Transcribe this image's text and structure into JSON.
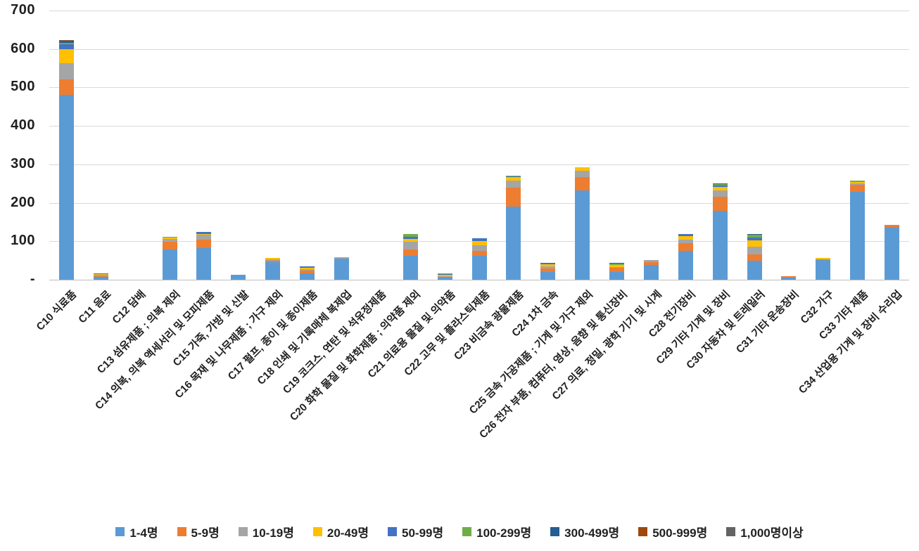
{
  "chart_data": {
    "type": "bar",
    "stacked": true,
    "title": "",
    "grid": "horizontal",
    "legend_position": "bottom",
    "ylim": [
      0,
      700
    ],
    "ytick_step": 100,
    "ytick_labels": [
      "-",
      "100",
      "200",
      "300",
      "400",
      "500",
      "600",
      "700"
    ],
    "categories": [
      "C10 식료품",
      "C11 음료",
      "C12 담배",
      "C13 섬유제품 ; 의복 제외",
      "C14 의복, 의복 액세서리 및 모피제품",
      "C15 가죽, 가방 및 신발",
      "C16 목재 및 나무제품 ; 가구 제외",
      "C17 펄프, 종이 및 종이제품",
      "C18 인쇄 및 기록매체 복제업",
      "C19 코크스, 연탄 및 석유정제품",
      "C20 화학 물질 및 화학제품 ; 의약품 제외",
      "C21 의료용 물질 및 의약품",
      "C22 고무 및 플라스틱제품",
      "C23 비금속 광물제품",
      "C24 1차 금속",
      "C25 금속 가공제품 ; 기계 및 가구 제외",
      "C26 전자 부품, 컴퓨터, 영상, 음향 및 통신장비",
      "C27 의료, 정밀, 광학 기기 및 시계",
      "C28 전기장비",
      "C29 기타 기계 및 장비",
      "C30 자동차 및 트레일러",
      "C31 기타 운송장비",
      "C32 가구",
      "C33 기타 제품",
      "C34 산업용 기계 및 장비 수리업"
    ],
    "series": [
      {
        "name": "1-4명",
        "color": "#5B9BD5",
        "values": [
          480,
          8,
          0,
          78,
          82,
          12,
          45,
          16,
          55,
          0,
          63,
          5,
          63,
          190,
          21,
          232,
          21,
          39,
          75,
          179,
          50,
          6,
          51,
          229,
          138
        ]
      },
      {
        "name": "5-9명",
        "color": "#ED7D31",
        "values": [
          41,
          2,
          0,
          20,
          23,
          0,
          5,
          8,
          0,
          0,
          15,
          2,
          12,
          49,
          9,
          35,
          10,
          7,
          20,
          36,
          16,
          3,
          2,
          17,
          4
        ]
      },
      {
        "name": "10-19명",
        "color": "#A5A5A5",
        "values": [
          42,
          2,
          0,
          8,
          12,
          0,
          3,
          3,
          3,
          0,
          20,
          2,
          15,
          19,
          4,
          17,
          2,
          6,
          9,
          17,
          20,
          0,
          0,
          5,
          0
        ]
      },
      {
        "name": "20-49명",
        "color": "#FFC000",
        "values": [
          37,
          3,
          0,
          3,
          2,
          0,
          4,
          4,
          0,
          0,
          8,
          3,
          11,
          9,
          6,
          8,
          6,
          0,
          9,
          10,
          17,
          0,
          3,
          4,
          0
        ]
      },
      {
        "name": "50-99명",
        "color": "#4472C4",
        "values": [
          13,
          2,
          0,
          1,
          5,
          0,
          0,
          3,
          0,
          0,
          6,
          2,
          6,
          1,
          3,
          0,
          0,
          0,
          5,
          3,
          7,
          0,
          0,
          0,
          0
        ]
      },
      {
        "name": "100-299명",
        "color": "#70AD47",
        "values": [
          3,
          0,
          0,
          2,
          0,
          0,
          0,
          0,
          0,
          0,
          6,
          2,
          0,
          3,
          0,
          0,
          3,
          0,
          0,
          3,
          7,
          0,
          0,
          2,
          0
        ]
      },
      {
        "name": "300-499명",
        "color": "#255E91",
        "values": [
          3,
          0,
          0,
          0,
          0,
          0,
          0,
          0,
          0,
          0,
          0,
          0,
          0,
          0,
          0,
          0,
          1,
          0,
          0,
          2,
          2,
          0,
          0,
          0,
          0
        ]
      },
      {
        "name": "500-999명",
        "color": "#9E480E",
        "values": [
          2,
          0,
          0,
          0,
          0,
          0,
          0,
          0,
          0,
          0,
          0,
          0,
          0,
          0,
          0,
          0,
          0,
          0,
          0,
          0,
          0,
          0,
          0,
          0,
          0
        ]
      },
      {
        "name": "1,000명이상",
        "color": "#636363",
        "values": [
          2,
          0,
          0,
          0,
          0,
          0,
          0,
          0,
          0,
          0,
          0,
          0,
          0,
          0,
          0,
          0,
          0,
          0,
          0,
          0,
          0,
          0,
          0,
          0,
          0
        ]
      }
    ]
  }
}
